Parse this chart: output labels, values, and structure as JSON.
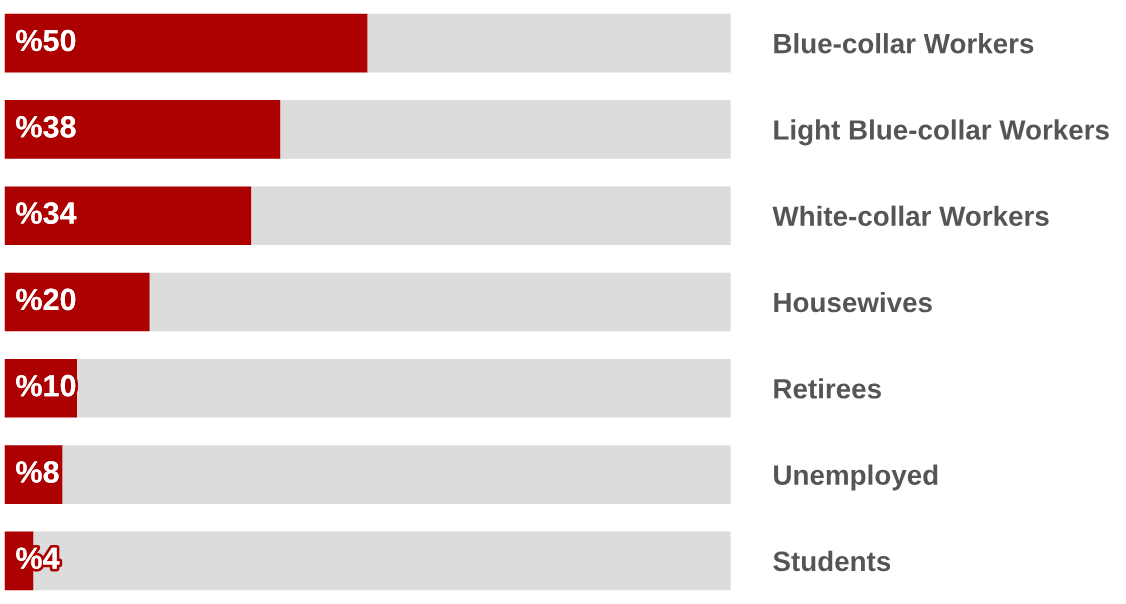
{
  "chart_data": {
    "type": "bar",
    "orientation": "horizontal",
    "stacked": true,
    "tick_labels": "y",
    "xlim": [
      0,
      100
    ],
    "categories": [
      "Blue-collar Workers",
      "Light Blue-collar Workers",
      "White-collar Workers",
      "Housewives",
      "Retirees",
      "Unemployed",
      "Students"
    ],
    "series": [
      {
        "color": "#ad0000",
        "values": [
          50,
          38,
          34,
          20,
          10,
          8,
          4
        ],
        "value_labels": [
          "%50",
          "%38",
          "%34",
          "%20",
          "%10",
          "%8",
          "%4"
        ]
      },
      {
        "color": "#dcdcdc",
        "values": [
          50,
          62,
          66,
          80,
          90,
          92,
          96
        ]
      }
    ]
  }
}
